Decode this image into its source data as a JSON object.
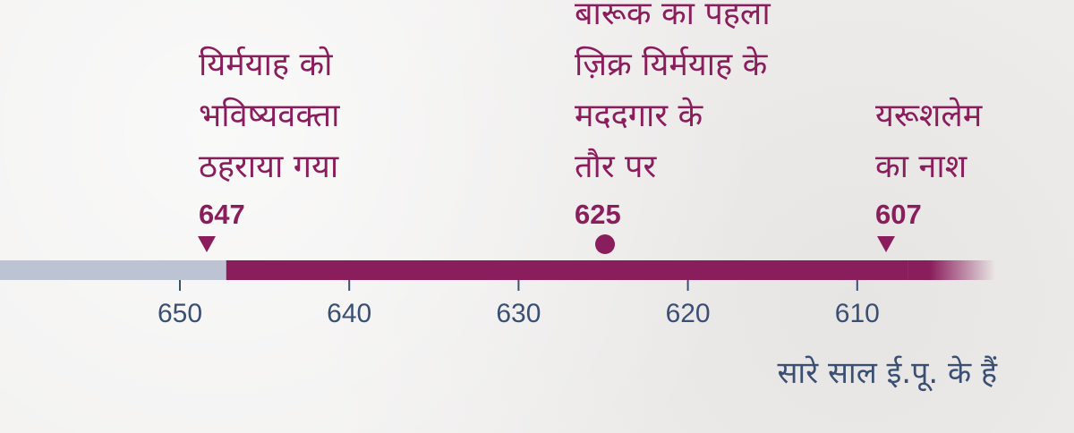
{
  "colors": {
    "accent": "#8a1e5c",
    "past_track": "#bcc3d3",
    "tick_text": "#3b4f73",
    "background": "#f1f0ef"
  },
  "chart_data": {
    "type": "timeline",
    "axis": {
      "direction": "descending",
      "ticks": [
        650,
        640,
        630,
        620,
        610
      ]
    },
    "highlight_range": {
      "from": 647,
      "to": 607
    },
    "events": [
      {
        "year_label": "647",
        "marker": "triangle-down",
        "label_lines": [
          "यिर्मयाह को",
          "भविष्यवक्ता",
          "ठहराया गया"
        ]
      },
      {
        "year_label": "625",
        "marker": "circle",
        "label_lines": [
          "बारूक का पहला",
          "ज़िक्र यिर्मयाह के",
          "मददगार के",
          "तौर पर"
        ]
      },
      {
        "year_label": "607",
        "marker": "triangle-down",
        "label_lines": [
          "यरूशलेम",
          "का नाश"
        ]
      }
    ],
    "footnote": "सारे साल ई.पू. के हैं"
  }
}
